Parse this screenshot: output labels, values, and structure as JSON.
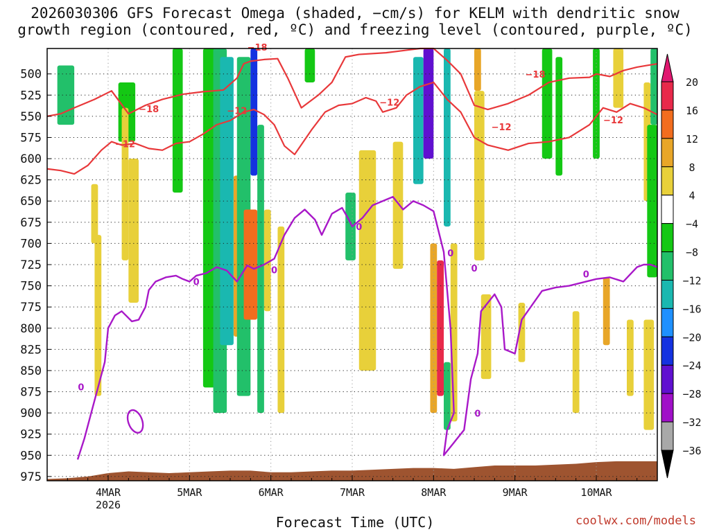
{
  "chart_data": {
    "type": "heatmap",
    "title_lines": [
      "2026030306 GFS Forecast Omega (shaded, −cm/s) for KELM with dendritic snow",
      "growth region (contoured, red, ºC) and freezing level (contoured, purple, ºC)"
    ],
    "xlabel": "Forecast Time (UTC)",
    "ylabel": "",
    "x_unit": "hours since 2026-03-03 06Z",
    "xlim": [
      0,
      180
    ],
    "y_levels": [
      500,
      525,
      550,
      575,
      600,
      625,
      650,
      675,
      700,
      725,
      750,
      775,
      800,
      825,
      850,
      875,
      900,
      925,
      950,
      975
    ],
    "ylim_hPa": [
      470,
      980
    ],
    "x_ticks": [
      {
        "label": "4MAR",
        "sublabel": "2026",
        "hour": 18
      },
      {
        "label": "5MAR",
        "sublabel": "",
        "hour": 42
      },
      {
        "label": "6MAR",
        "sublabel": "",
        "hour": 66
      },
      {
        "label": "7MAR",
        "sublabel": "",
        "hour": 90
      },
      {
        "label": "8MAR",
        "sublabel": "",
        "hour": 114
      },
      {
        "label": "9MAR",
        "sublabel": "",
        "hour": 138
      },
      {
        "label": "10MAR",
        "sublabel": "",
        "hour": 162
      }
    ],
    "colorbar": {
      "boundaries": [
        20,
        16,
        12,
        8,
        4,
        -4,
        -8,
        -12,
        -16,
        -20,
        -24,
        -28,
        -32,
        -36
      ],
      "colors": [
        "#e8294a",
        "#f26d1e",
        "#e8a628",
        "#e8d03a",
        "#ffffff",
        "#14c814",
        "#22c06a",
        "#1ab8b0",
        "#1e90ff",
        "#1432e0",
        "#6010d0",
        "#a010c8",
        "#a8a8a8"
      ],
      "extend_top_color": "#e01870",
      "extend_bottom_color": "#000000"
    },
    "omega_blobs": [
      {
        "x": [
          3,
          8
        ],
        "p": [
          490,
          560
        ],
        "value": -8
      },
      {
        "x": [
          13,
          15
        ],
        "p": [
          630,
          700
        ],
        "value": 6
      },
      {
        "x": [
          14,
          16
        ],
        "p": [
          690,
          880
        ],
        "value": 6
      },
      {
        "x": [
          21,
          26
        ],
        "p": [
          510,
          580
        ],
        "value": -6
      },
      {
        "x": [
          22,
          24
        ],
        "p": [
          540,
          720
        ],
        "value": 6
      },
      {
        "x": [
          24,
          27
        ],
        "p": [
          600,
          770
        ],
        "value": 5
      },
      {
        "x": [
          37,
          40
        ],
        "p": [
          470,
          640
        ],
        "value": -6
      },
      {
        "x": [
          46,
          50
        ],
        "p": [
          470,
          870
        ],
        "value": -7
      },
      {
        "x": [
          49,
          53
        ],
        "p": [
          470,
          900
        ],
        "value": -10
      },
      {
        "x": [
          51,
          55
        ],
        "p": [
          480,
          820
        ],
        "value": -14
      },
      {
        "x": [
          55,
          57
        ],
        "p": [
          620,
          810
        ],
        "value": 10
      },
      {
        "x": [
          56,
          60
        ],
        "p": [
          480,
          880
        ],
        "value": -10
      },
      {
        "x": [
          60,
          62
        ],
        "p": [
          470,
          620
        ],
        "value": -22
      },
      {
        "x": [
          58,
          62
        ],
        "p": [
          660,
          790
        ],
        "value": 14
      },
      {
        "x": [
          62,
          64
        ],
        "p": [
          560,
          900
        ],
        "value": -8
      },
      {
        "x": [
          64,
          66
        ],
        "p": [
          660,
          780
        ],
        "value": 8
      },
      {
        "x": [
          68,
          70
        ],
        "p": [
          680,
          900
        ],
        "value": 6
      },
      {
        "x": [
          76,
          79
        ],
        "p": [
          470,
          510
        ],
        "value": -6
      },
      {
        "x": [
          88,
          91
        ],
        "p": [
          640,
          720
        ],
        "value": -8
      },
      {
        "x": [
          92,
          97
        ],
        "p": [
          590,
          850
        ],
        "value": 6
      },
      {
        "x": [
          102,
          105
        ],
        "p": [
          580,
          730
        ],
        "value": 6
      },
      {
        "x": [
          108,
          111
        ],
        "p": [
          480,
          630
        ],
        "value": -14
      },
      {
        "x": [
          111,
          114
        ],
        "p": [
          470,
          600
        ],
        "value": -24
      },
      {
        "x": [
          113,
          115
        ],
        "p": [
          700,
          900
        ],
        "value": 10
      },
      {
        "x": [
          115,
          117
        ],
        "p": [
          720,
          880
        ],
        "value": 20
      },
      {
        "x": [
          117,
          119
        ],
        "p": [
          470,
          680
        ],
        "value": -12
      },
      {
        "x": [
          117,
          119
        ],
        "p": [
          840,
          920
        ],
        "value": -8
      },
      {
        "x": [
          119,
          121
        ],
        "p": [
          700,
          910
        ],
        "value": 6
      },
      {
        "x": [
          126,
          128
        ],
        "p": [
          470,
          520
        ],
        "value": 10
      },
      {
        "x": [
          126,
          129
        ],
        "p": [
          520,
          720
        ],
        "value": 6
      },
      {
        "x": [
          128,
          131
        ],
        "p": [
          760,
          860
        ],
        "value": 6
      },
      {
        "x": [
          139,
          141
        ],
        "p": [
          770,
          840
        ],
        "value": 6
      },
      {
        "x": [
          146,
          149
        ],
        "p": [
          470,
          600
        ],
        "value": -6
      },
      {
        "x": [
          150,
          152
        ],
        "p": [
          480,
          620
        ],
        "value": -7
      },
      {
        "x": [
          155,
          157
        ],
        "p": [
          780,
          900
        ],
        "value": 6
      },
      {
        "x": [
          161,
          163
        ],
        "p": [
          470,
          600
        ],
        "value": -6
      },
      {
        "x": [
          164,
          166
        ],
        "p": [
          740,
          820
        ],
        "value": 10
      },
      {
        "x": [
          167,
          170
        ],
        "p": [
          470,
          540
        ],
        "value": 6
      },
      {
        "x": [
          171,
          173
        ],
        "p": [
          790,
          880
        ],
        "value": 6
      },
      {
        "x": [
          176,
          178
        ],
        "p": [
          510,
          650
        ],
        "value": 6
      },
      {
        "x": [
          176,
          179
        ],
        "p": [
          790,
          920
        ],
        "value": 6
      },
      {
        "x": [
          178,
          180
        ],
        "p": [
          470,
          560
        ],
        "value": -8
      },
      {
        "x": [
          177,
          180
        ],
        "p": [
          560,
          740
        ],
        "value": -7
      }
    ],
    "series": [
      {
        "name": "-18",
        "color": "#e8383a",
        "labels": [
          {
            "x": 30,
            "p": 542,
            "text": "−18"
          },
          {
            "x": 62,
            "p": 469,
            "text": "−18"
          },
          {
            "x": 144,
            "p": 501,
            "text": "−18"
          }
        ],
        "x": [
          0,
          4,
          8,
          14,
          19,
          24,
          29,
          34,
          40,
          46,
          52,
          56,
          58,
          60,
          64,
          68,
          71,
          75,
          80,
          84,
          88,
          92,
          100,
          106,
          110,
          114,
          118,
          122,
          126,
          130,
          136,
          142,
          148,
          154,
          160,
          162,
          166,
          170,
          174,
          177,
          180
        ],
        "y": [
          550,
          547,
          540,
          530,
          520,
          547,
          537,
          530,
          524,
          521,
          519,
          505,
          488,
          485,
          483,
          482,
          505,
          540,
          525,
          510,
          480,
          477,
          475,
          472,
          470,
          470,
          484,
          500,
          537,
          542,
          535,
          525,
          510,
          505,
          504,
          500,
          503,
          496,
          492,
          490,
          488
        ]
      },
      {
        "name": "-12",
        "color": "#e8383a",
        "labels": [
          {
            "x": 23,
            "p": 583,
            "text": "−12"
          },
          {
            "x": 56,
            "p": 544,
            "text": "−12"
          },
          {
            "x": 101,
            "p": 534,
            "text": "−12"
          },
          {
            "x": 134,
            "p": 563,
            "text": "−12"
          },
          {
            "x": 167,
            "p": 555,
            "text": "−12"
          }
        ],
        "x": [
          0,
          4,
          8,
          12,
          16,
          19,
          22,
          26,
          30,
          34,
          38,
          42,
          46,
          50,
          54,
          58,
          61,
          64,
          67,
          70,
          73,
          78,
          82,
          86,
          90,
          94,
          97,
          99,
          103,
          106,
          110,
          114,
          118,
          122,
          126,
          130,
          136,
          142,
          148,
          154,
          160,
          164,
          168,
          172,
          176,
          180
        ],
        "y": [
          612,
          614,
          618,
          608,
          590,
          580,
          584,
          582,
          588,
          590,
          582,
          580,
          571,
          560,
          555,
          545,
          542,
          548,
          560,
          585,
          595,
          566,
          545,
          537,
          535,
          528,
          532,
          545,
          540,
          525,
          515,
          510,
          530,
          545,
          575,
          584,
          590,
          582,
          580,
          575,
          560,
          540,
          545,
          535,
          540,
          548
        ]
      },
      {
        "name": "0",
        "color": "#a818c8",
        "labels": [
          {
            "x": 10,
            "p": 870,
            "text": "0"
          },
          {
            "x": 44,
            "p": 746,
            "text": "0"
          },
          {
            "x": 67,
            "p": 732,
            "text": "0"
          },
          {
            "x": 92,
            "p": 681,
            "text": "0"
          },
          {
            "x": 119,
            "p": 712,
            "text": "0"
          },
          {
            "x": 126,
            "p": 730,
            "text": "0"
          },
          {
            "x": 127,
            "p": 901,
            "text": "0"
          },
          {
            "x": 159,
            "p": 737,
            "text": "0"
          }
        ],
        "x": [
          9,
          11,
          13,
          15,
          17,
          18,
          20,
          22,
          25,
          27,
          29,
          30,
          32,
          35,
          38,
          40,
          42,
          44,
          47,
          50,
          53,
          56,
          59,
          61,
          64,
          67,
          70,
          73,
          76,
          79,
          81,
          84,
          87,
          89,
          90,
          93,
          96,
          99,
          102,
          105,
          108,
          111,
          114,
          117,
          119,
          120,
          118,
          117,
          120,
          123,
          125,
          127,
          128,
          132,
          134,
          135,
          138,
          140,
          146,
          150,
          154,
          158,
          162,
          166,
          170,
          174,
          176,
          178,
          180
        ],
        "y": [
          955,
          930,
          900,
          870,
          840,
          800,
          785,
          780,
          792,
          790,
          775,
          755,
          745,
          740,
          738,
          742,
          745,
          738,
          735,
          728,
          732,
          745,
          726,
          730,
          725,
          718,
          690,
          670,
          660,
          672,
          690,
          665,
          658,
          672,
          680,
          670,
          655,
          650,
          645,
          660,
          650,
          655,
          662,
          710,
          800,
          900,
          920,
          950,
          935,
          920,
          860,
          830,
          780,
          760,
          775,
          825,
          830,
          790,
          756,
          752,
          750,
          746,
          742,
          740,
          745,
          728,
          725,
          725,
          728
        ]
      }
    ],
    "ground": {
      "color": "#9e5430",
      "x": [
        0,
        6,
        12,
        18,
        24,
        30,
        36,
        42,
        48,
        54,
        60,
        66,
        72,
        78,
        84,
        90,
        96,
        102,
        108,
        114,
        120,
        126,
        132,
        138,
        144,
        150,
        156,
        162,
        168,
        174,
        180
      ],
      "p": [
        978,
        977,
        975,
        971,
        969,
        970,
        971,
        970,
        969,
        968,
        968,
        970,
        970,
        969,
        968,
        968,
        967,
        966,
        965,
        965,
        966,
        964,
        962,
        962,
        962,
        961,
        960,
        958,
        957,
        957,
        957
      ]
    }
  },
  "credit": "coolwx.com/models"
}
